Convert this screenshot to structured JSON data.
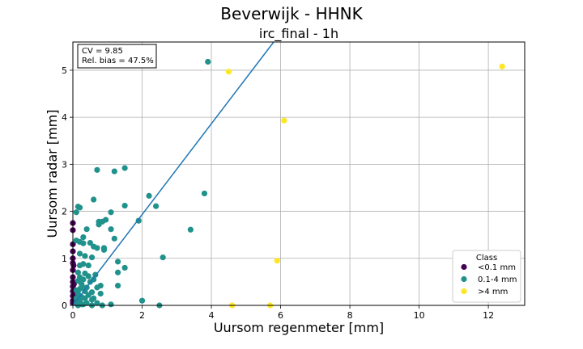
{
  "chart_data": {
    "type": "scatter",
    "title": "Beverwijk - HHNK",
    "subtitle": "irc_final - 1h",
    "xlabel": "Uursom regenmeter [mm]",
    "ylabel": "Uursom radar [mm]",
    "xlim": [
      0,
      13.05
    ],
    "ylim": [
      0,
      5.6
    ],
    "xticks": [
      "0",
      "2",
      "4",
      "6",
      "8",
      "10",
      "12"
    ],
    "yticks": [
      "0",
      "1",
      "2",
      "3",
      "4",
      "5"
    ],
    "grid": true,
    "stats": [
      "CV = 9.85",
      "Rel. bias = 47.5%"
    ],
    "fit_line": {
      "x": [
        0,
        5.8
      ],
      "y": [
        0,
        5.6
      ],
      "color": "#1f77b4"
    },
    "legend": {
      "title": "Class",
      "placement": "lower-right"
    },
    "series": [
      {
        "name": "<0.1 mm",
        "color": "#440154",
        "points": [
          [
            0,
            1.75
          ],
          [
            0,
            1.6
          ],
          [
            0,
            1.3
          ],
          [
            0,
            1.15
          ],
          [
            0,
            1.0
          ],
          [
            0,
            0.9
          ],
          [
            0,
            0.75
          ],
          [
            0,
            0.6
          ],
          [
            0,
            0.5
          ],
          [
            0,
            0.4
          ],
          [
            0,
            0.3
          ],
          [
            0,
            0.2
          ],
          [
            0,
            0.1
          ],
          [
            0,
            0.05
          ],
          [
            0.02,
            0.85
          ],
          [
            0.03,
            0.45
          ],
          [
            0.05,
            0.25
          ],
          [
            0.05,
            0.05
          ]
        ]
      },
      {
        "name": "0.1-4 mm",
        "color": "#21918c",
        "points": [
          [
            3.9,
            5.18
          ],
          [
            1.5,
            2.92
          ],
          [
            1.2,
            2.85
          ],
          [
            0.7,
            2.88
          ],
          [
            3.8,
            2.38
          ],
          [
            2.2,
            2.33
          ],
          [
            0.6,
            2.25
          ],
          [
            2.4,
            2.11
          ],
          [
            1.5,
            2.12
          ],
          [
            0.15,
            2.1
          ],
          [
            0.2,
            2.08
          ],
          [
            0.1,
            1.98
          ],
          [
            1.1,
            1.98
          ],
          [
            1.9,
            1.8
          ],
          [
            0.95,
            1.82
          ],
          [
            0.85,
            1.78
          ],
          [
            0.75,
            1.78
          ],
          [
            0.75,
            1.72
          ],
          [
            3.4,
            1.61
          ],
          [
            1.1,
            1.62
          ],
          [
            0.4,
            1.62
          ],
          [
            1.2,
            1.42
          ],
          [
            0.3,
            1.45
          ],
          [
            0.1,
            1.38
          ],
          [
            0.2,
            1.35
          ],
          [
            0.3,
            1.32
          ],
          [
            0.5,
            1.33
          ],
          [
            0.6,
            1.25
          ],
          [
            0.7,
            1.22
          ],
          [
            0.9,
            1.22
          ],
          [
            0.9,
            1.18
          ],
          [
            0.2,
            1.1
          ],
          [
            0.35,
            1.05
          ],
          [
            0.55,
            1.02
          ],
          [
            2.6,
            1.02
          ],
          [
            1.3,
            0.93
          ],
          [
            0.3,
            0.88
          ],
          [
            0.45,
            0.85
          ],
          [
            0.2,
            0.85
          ],
          [
            1.5,
            0.8
          ],
          [
            1.3,
            0.7
          ],
          [
            0.15,
            0.7
          ],
          [
            0.35,
            0.68
          ],
          [
            0.65,
            0.65
          ],
          [
            0.45,
            0.62
          ],
          [
            0.2,
            0.6
          ],
          [
            0.6,
            0.55
          ],
          [
            0.3,
            0.55
          ],
          [
            0.15,
            0.52
          ],
          [
            0.5,
            0.5
          ],
          [
            0.25,
            0.45
          ],
          [
            0.8,
            0.42
          ],
          [
            1.3,
            0.42
          ],
          [
            0.7,
            0.38
          ],
          [
            0.4,
            0.38
          ],
          [
            0.2,
            0.35
          ],
          [
            0.1,
            0.32
          ],
          [
            0.35,
            0.3
          ],
          [
            0.55,
            0.28
          ],
          [
            0.15,
            0.25
          ],
          [
            0.45,
            0.22
          ],
          [
            0.8,
            0.25
          ],
          [
            0.25,
            0.18
          ],
          [
            0.1,
            0.15
          ],
          [
            0.35,
            0.15
          ],
          [
            0.55,
            0.12
          ],
          [
            0.2,
            0.1
          ],
          [
            2.0,
            0.1
          ],
          [
            0.4,
            0.05
          ],
          [
            0.7,
            0.05
          ],
          [
            0.1,
            0.05
          ],
          [
            1.1,
            0.02
          ],
          [
            0.3,
            0.02
          ],
          [
            2.5,
            0.0
          ],
          [
            0.15,
            0.0
          ],
          [
            0.55,
            0.0
          ],
          [
            0.85,
            0.0
          ],
          [
            0.3,
            0.38
          ],
          [
            0.6,
            0.15
          ],
          [
            0.25,
            0.02
          ]
        ]
      },
      {
        "name": ">4 mm",
        "color": "#fde725",
        "points": [
          [
            12.4,
            5.08
          ],
          [
            4.5,
            4.97
          ],
          [
            6.1,
            3.93
          ],
          [
            5.9,
            0.95
          ],
          [
            4.6,
            0.0
          ],
          [
            5.7,
            0.0
          ]
        ]
      }
    ]
  }
}
